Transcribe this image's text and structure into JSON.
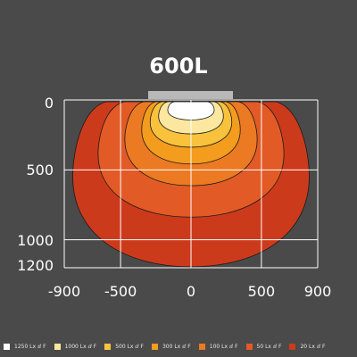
{
  "title": "600L",
  "chart_data": {
    "type": "isolux-contour",
    "title": "600L",
    "x_ticks": [
      "-900",
      "-500",
      "0",
      "500",
      "900"
    ],
    "y_ticks": [
      "0",
      "500",
      "1000",
      "1200"
    ],
    "xlim": [
      -900,
      900
    ],
    "ylim": [
      0,
      1200
    ],
    "contours": [
      {
        "label": "20 Lx ⅆ F",
        "color": "#cc3a1c",
        "half_width": 840,
        "depth": 1180
      },
      {
        "label": "50 Lx ⅆ F",
        "color": "#e25a25",
        "half_width": 660,
        "depth": 825
      },
      {
        "label": "100 Lx ⅆ F",
        "color": "#ec7a22",
        "half_width": 470,
        "depth": 600
      },
      {
        "label": "300 Lx ⅆ F",
        "color": "#f39c1e",
        "half_width": 350,
        "depth": 445
      },
      {
        "label": "500 Lx ⅆ F",
        "color": "#f8c23c",
        "half_width": 290,
        "depth": 325
      },
      {
        "label": "1000 Lx ⅆ F",
        "color": "#fbe7a0",
        "half_width": 230,
        "depth": 230
      },
      {
        "label": "1250 Lx ⅆ F",
        "color": "#ffffff",
        "half_width": 165,
        "depth": 130
      }
    ]
  },
  "legend": [
    {
      "label": "1250 Lx ⅆ F",
      "color": "#ffffff"
    },
    {
      "label": "1000 Lx ⅆ F",
      "color": "#fbe7a0"
    },
    {
      "label": "500 Lx ⅆ F",
      "color": "#f8c23c"
    },
    {
      "label": "300 Lx ⅆ F",
      "color": "#f39c1e"
    },
    {
      "label": "100 Lx ⅆ F",
      "color": "#ec7a22"
    },
    {
      "label": "50 Lx ⅆ F",
      "color": "#e25a25"
    },
    {
      "label": "20 Lx ⅆ F",
      "color": "#cc3a1c"
    }
  ],
  "colors": {
    "background": "#4a4a4a",
    "grid": "#ffffff",
    "fixture": "#b8b8b8",
    "outline": "#1a1a1a"
  }
}
